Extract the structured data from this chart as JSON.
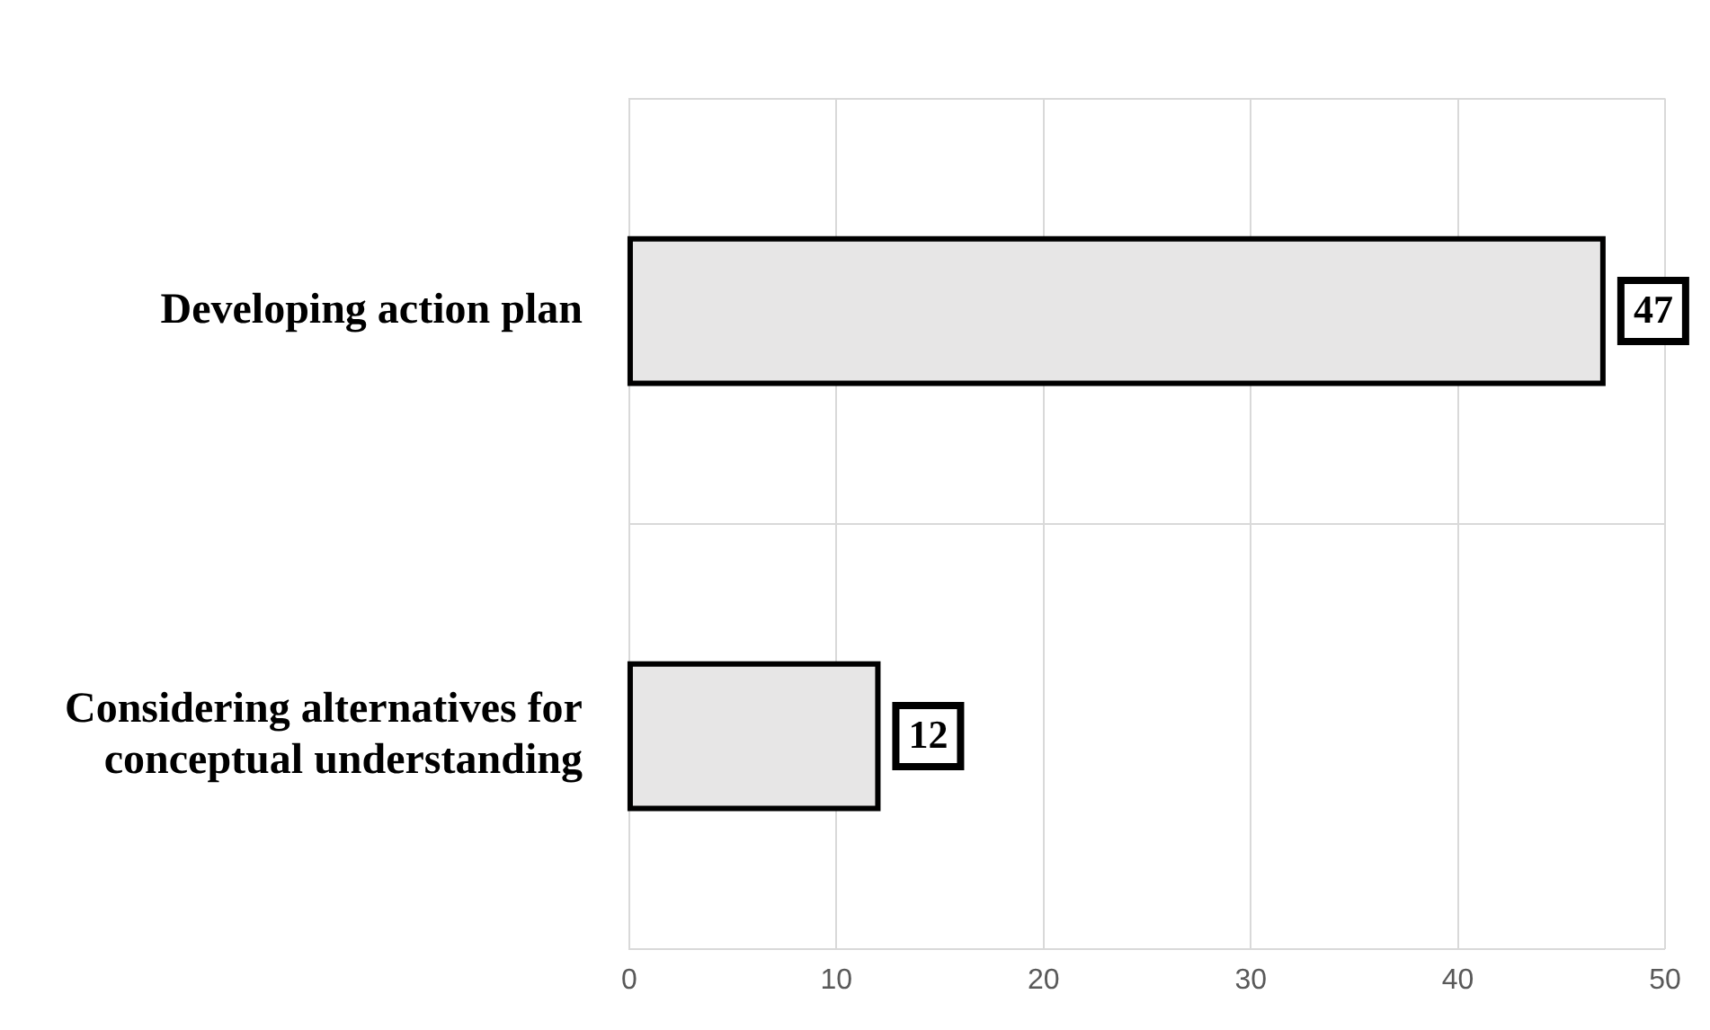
{
  "chart_data": {
    "type": "bar",
    "orientation": "horizontal",
    "categories": [
      "Developing action plan",
      "Considering alternatives for conceptual understanding"
    ],
    "values": [
      47,
      12
    ],
    "color": "#e7e6e6",
    "xlim": [
      0,
      50
    ],
    "xticks": [
      0,
      10,
      20,
      30,
      40,
      50
    ],
    "grid": true,
    "data_labels": true
  }
}
